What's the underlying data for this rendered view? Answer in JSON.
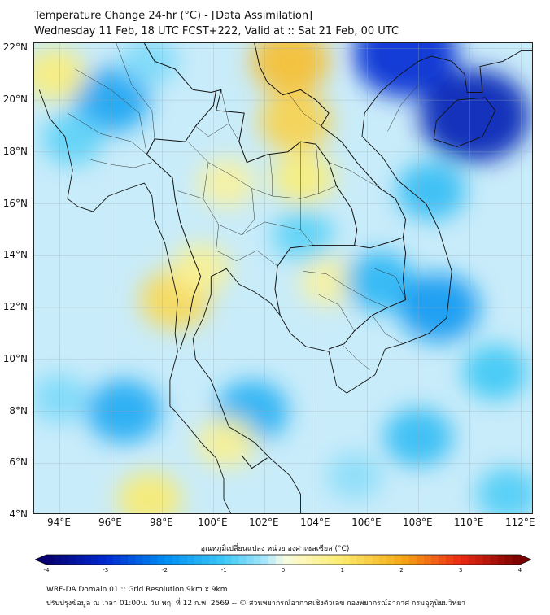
{
  "header": {
    "line1": "Temperature Change 24-hr (°C) - [Data Assimilation]",
    "line2": "Wednesday 11 Feb, 18 UTC FCST+222, Valid at :: Sat 21 Feb, 00 UTC"
  },
  "map": {
    "lat_ticks": [
      "22°N",
      "20°N",
      "18°N",
      "16°N",
      "14°N",
      "12°N",
      "10°N",
      "8°N",
      "6°N",
      "4°N"
    ],
    "lon_ticks": [
      "94°E",
      "96°E",
      "98°E",
      "100°E",
      "102°E",
      "104°E",
      "106°E",
      "108°E",
      "110°E",
      "112°E"
    ],
    "extent": {
      "lon_min": 93.0,
      "lon_max": 112.5,
      "lat_min": 4.0,
      "lat_max": 22.2
    },
    "base_color": "#c9ecfa",
    "field_spots": [
      {
        "lon": 96.0,
        "lat": 20.0,
        "value": -1.6
      },
      {
        "lon": 94.5,
        "lat": 18.5,
        "value": -0.8
      },
      {
        "lon": 93.8,
        "lat": 21.0,
        "value": 0.9
      },
      {
        "lon": 97.5,
        "lat": 21.5,
        "value": -0.6
      },
      {
        "lon": 103.0,
        "lat": 21.5,
        "value": 1.7
      },
      {
        "lon": 103.2,
        "lat": 19.2,
        "value": 1.4
      },
      {
        "lon": 103.5,
        "lat": 17.0,
        "value": 0.9
      },
      {
        "lon": 100.5,
        "lat": 16.8,
        "value": 0.6
      },
      {
        "lon": 98.5,
        "lat": 12.3,
        "value": 1.3
      },
      {
        "lon": 99.5,
        "lat": 13.5,
        "value": 0.7
      },
      {
        "lon": 104.5,
        "lat": 13.0,
        "value": 0.6
      },
      {
        "lon": 103.5,
        "lat": 14.8,
        "value": -0.8
      },
      {
        "lon": 107.5,
        "lat": 21.8,
        "value": -3.0
      },
      {
        "lon": 110.2,
        "lat": 19.4,
        "value": -3.3
      },
      {
        "lon": 108.5,
        "lat": 16.5,
        "value": -1.2
      },
      {
        "lon": 106.5,
        "lat": 13.0,
        "value": -1.3
      },
      {
        "lon": 108.8,
        "lat": 12.0,
        "value": -1.8
      },
      {
        "lon": 96.5,
        "lat": 8.0,
        "value": -1.5
      },
      {
        "lon": 94.0,
        "lat": 8.5,
        "value": -0.6
      },
      {
        "lon": 101.5,
        "lat": 8.0,
        "value": -1.4
      },
      {
        "lon": 108.0,
        "lat": 7.0,
        "value": -1.2
      },
      {
        "lon": 111.0,
        "lat": 9.5,
        "value": -1.0
      },
      {
        "lon": 100.5,
        "lat": 6.8,
        "value": 0.7
      },
      {
        "lon": 97.5,
        "lat": 4.6,
        "value": 1.0
      },
      {
        "lon": 111.5,
        "lat": 4.8,
        "value": -0.9
      },
      {
        "lon": 105.5,
        "lat": 5.5,
        "value": -0.5
      }
    ],
    "coastline": [
      [
        [
          93.2,
          20.4
        ],
        [
          93.6,
          19.3
        ],
        [
          94.2,
          18.6
        ],
        [
          94.5,
          17.3
        ],
        [
          94.3,
          16.2
        ],
        [
          94.7,
          15.9
        ],
        [
          95.3,
          15.7
        ],
        [
          95.9,
          16.3
        ],
        [
          96.7,
          16.6
        ],
        [
          97.3,
          16.8
        ],
        [
          97.6,
          16.3
        ],
        [
          97.7,
          15.4
        ],
        [
          98.1,
          14.5
        ],
        [
          98.4,
          13.2
        ],
        [
          98.6,
          12.3
        ],
        [
          98.5,
          11.0
        ],
        [
          98.6,
          10.3
        ],
        [
          98.3,
          9.2
        ],
        [
          98.3,
          8.2
        ],
        [
          98.5,
          8.0
        ],
        [
          99.1,
          7.3
        ],
        [
          99.6,
          6.7
        ],
        [
          100.1,
          6.2
        ],
        [
          100.4,
          5.4
        ],
        [
          100.4,
          4.6
        ],
        [
          100.7,
          4.0
        ]
      ],
      [
        [
          103.4,
          4.0
        ],
        [
          103.4,
          4.8
        ],
        [
          103.0,
          5.5
        ],
        [
          102.2,
          6.2
        ],
        [
          101.6,
          6.8
        ],
        [
          100.6,
          7.4
        ],
        [
          100.3,
          8.2
        ],
        [
          99.9,
          9.2
        ],
        [
          99.3,
          10.0
        ],
        [
          99.2,
          10.8
        ],
        [
          99.6,
          11.6
        ],
        [
          99.9,
          12.5
        ],
        [
          99.9,
          13.2
        ],
        [
          100.5,
          13.5
        ],
        [
          101.0,
          12.9
        ],
        [
          101.6,
          12.6
        ],
        [
          102.2,
          12.2
        ],
        [
          102.6,
          11.7
        ],
        [
          103.0,
          11.0
        ],
        [
          103.6,
          10.5
        ],
        [
          104.5,
          10.3
        ],
        [
          104.8,
          9.0
        ],
        [
          105.2,
          8.7
        ],
        [
          106.3,
          9.4
        ],
        [
          106.7,
          10.4
        ],
        [
          107.4,
          10.6
        ],
        [
          108.4,
          11.0
        ],
        [
          109.1,
          11.6
        ],
        [
          109.2,
          12.5
        ],
        [
          109.3,
          13.4
        ],
        [
          108.8,
          15.0
        ],
        [
          108.3,
          16.0
        ],
        [
          107.2,
          16.9
        ],
        [
          106.6,
          17.8
        ],
        [
          105.8,
          18.6
        ],
        [
          105.9,
          19.5
        ],
        [
          106.5,
          20.3
        ],
        [
          107.3,
          21.0
        ],
        [
          108.0,
          21.5
        ],
        [
          108.5,
          21.7
        ],
        [
          109.3,
          21.5
        ],
        [
          109.8,
          21.0
        ],
        [
          109.9,
          20.3
        ],
        [
          110.5,
          20.3
        ],
        [
          110.4,
          21.3
        ],
        [
          111.3,
          21.5
        ],
        [
          112.0,
          21.9
        ],
        [
          112.5,
          21.9
        ]
      ],
      [
        [
          108.7,
          19.2
        ],
        [
          108.6,
          18.5
        ],
        [
          109.5,
          18.2
        ],
        [
          110.5,
          18.6
        ],
        [
          111.0,
          19.6
        ],
        [
          110.6,
          20.1
        ],
        [
          109.5,
          20.0
        ],
        [
          108.7,
          19.2
        ]
      ]
    ],
    "borders": [
      [
        [
          97.3,
          22.2
        ],
        [
          97.7,
          21.5
        ],
        [
          98.5,
          21.2
        ],
        [
          99.2,
          20.4
        ],
        [
          99.9,
          20.3
        ],
        [
          100.3,
          20.4
        ],
        [
          100.1,
          19.6
        ],
        [
          101.2,
          19.5
        ],
        [
          101.0,
          18.4
        ],
        [
          101.3,
          17.6
        ],
        [
          102.1,
          17.9
        ],
        [
          102.9,
          18.0
        ],
        [
          103.4,
          18.4
        ],
        [
          104.0,
          18.3
        ],
        [
          104.5,
          17.6
        ],
        [
          104.8,
          16.7
        ],
        [
          105.4,
          15.8
        ],
        [
          105.6,
          15.0
        ],
        [
          105.5,
          14.4
        ],
        [
          104.8,
          14.4
        ],
        [
          103.9,
          14.4
        ],
        [
          103.0,
          14.3
        ],
        [
          102.5,
          13.6
        ],
        [
          102.4,
          12.7
        ],
        [
          102.6,
          11.7
        ]
      ],
      [
        [
          100.1,
          20.4
        ],
        [
          100.0,
          19.8
        ],
        [
          99.3,
          19.0
        ],
        [
          98.9,
          18.4
        ],
        [
          97.7,
          18.5
        ],
        [
          97.4,
          17.9
        ],
        [
          98.4,
          17.0
        ],
        [
          98.5,
          16.2
        ],
        [
          98.7,
          15.3
        ],
        [
          99.1,
          14.2
        ],
        [
          99.5,
          13.2
        ],
        [
          99.2,
          12.4
        ],
        [
          99.0,
          11.3
        ],
        [
          98.7,
          10.4
        ]
      ],
      [
        [
          101.6,
          22.2
        ],
        [
          101.8,
          21.3
        ],
        [
          102.1,
          20.7
        ],
        [
          102.7,
          20.2
        ],
        [
          103.4,
          20.4
        ],
        [
          104.0,
          20.0
        ],
        [
          104.5,
          19.5
        ],
        [
          104.2,
          19.0
        ],
        [
          105.0,
          18.4
        ],
        [
          105.6,
          17.6
        ],
        [
          106.5,
          16.6
        ],
        [
          107.1,
          16.2
        ],
        [
          107.5,
          15.4
        ],
        [
          107.4,
          14.7
        ]
      ],
      [
        [
          107.4,
          14.7
        ],
        [
          107.5,
          14.1
        ],
        [
          107.4,
          13.1
        ],
        [
          107.5,
          12.3
        ],
        [
          106.8,
          12.0
        ],
        [
          106.2,
          11.7
        ],
        [
          105.5,
          11.1
        ],
        [
          105.1,
          10.6
        ],
        [
          104.5,
          10.4
        ]
      ],
      [
        [
          105.5,
          14.4
        ],
        [
          106.1,
          14.3
        ],
        [
          106.8,
          14.5
        ],
        [
          107.4,
          14.7
        ]
      ],
      [
        [
          101.1,
          6.3
        ],
        [
          101.5,
          5.8
        ],
        [
          102.1,
          6.2
        ]
      ]
    ],
    "internal_lines": [
      [
        [
          99.0,
          18.4
        ],
        [
          99.8,
          17.6
        ],
        [
          100.7,
          17.1
        ],
        [
          101.5,
          16.6
        ],
        [
          102.3,
          16.3
        ],
        [
          103.4,
          16.2
        ]
      ],
      [
        [
          99.8,
          17.6
        ],
        [
          99.6,
          16.2
        ],
        [
          100.2,
          15.2
        ],
        [
          101.1,
          14.8
        ],
        [
          102.0,
          15.3
        ],
        [
          103.4,
          15.0
        ]
      ],
      [
        [
          100.2,
          15.2
        ],
        [
          100.1,
          14.2
        ],
        [
          100.9,
          13.8
        ],
        [
          101.7,
          14.2
        ],
        [
          102.5,
          13.6
        ]
      ],
      [
        [
          101.5,
          16.6
        ],
        [
          101.6,
          15.4
        ],
        [
          101.1,
          14.8
        ]
      ],
      [
        [
          103.4,
          16.2
        ],
        [
          104.1,
          16.4
        ],
        [
          104.8,
          16.7
        ]
      ],
      [
        [
          103.4,
          18.4
        ],
        [
          103.4,
          17.2
        ],
        [
          103.4,
          16.2
        ],
        [
          103.4,
          15.0
        ],
        [
          103.9,
          14.4
        ]
      ],
      [
        [
          102.2,
          17.9
        ],
        [
          102.3,
          16.9
        ],
        [
          102.3,
          16.3
        ]
      ],
      [
        [
          104.0,
          18.3
        ],
        [
          104.1,
          17.2
        ],
        [
          104.1,
          16.4
        ]
      ],
      [
        [
          100.3,
          20.4
        ],
        [
          100.6,
          19.1
        ],
        [
          101.0,
          18.4
        ]
      ],
      [
        [
          99.3,
          19.0
        ],
        [
          99.8,
          18.6
        ],
        [
          100.6,
          19.1
        ]
      ],
      [
        [
          98.6,
          16.5
        ],
        [
          99.6,
          16.2
        ]
      ],
      [
        [
          102.9,
          20.3
        ],
        [
          103.5,
          19.5
        ],
        [
          104.2,
          19.0
        ]
      ],
      [
        [
          104.5,
          17.6
        ],
        [
          105.3,
          17.3
        ],
        [
          106.5,
          16.6
        ]
      ],
      [
        [
          96.2,
          22.2
        ],
        [
          96.8,
          20.6
        ],
        [
          97.6,
          19.6
        ],
        [
          97.7,
          18.5
        ]
      ],
      [
        [
          94.6,
          21.2
        ],
        [
          96.0,
          20.4
        ],
        [
          97.1,
          19.5
        ],
        [
          97.4,
          17.9
        ]
      ],
      [
        [
          94.3,
          19.5
        ],
        [
          95.6,
          18.7
        ],
        [
          96.8,
          18.4
        ],
        [
          97.4,
          17.9
        ]
      ],
      [
        [
          95.2,
          17.7
        ],
        [
          96.1,
          17.5
        ],
        [
          96.9,
          17.4
        ],
        [
          97.6,
          17.6
        ]
      ],
      [
        [
          105.2,
          12.8
        ],
        [
          106.1,
          12.3
        ],
        [
          106.8,
          12.0
        ]
      ],
      [
        [
          104.1,
          12.5
        ],
        [
          104.9,
          12.1
        ],
        [
          105.5,
          11.1
        ]
      ],
      [
        [
          103.5,
          13.4
        ],
        [
          104.4,
          13.3
        ],
        [
          105.2,
          12.8
        ]
      ],
      [
        [
          105.0,
          10.6
        ],
        [
          105.6,
          10.0
        ],
        [
          106.1,
          9.6
        ]
      ],
      [
        [
          106.2,
          11.7
        ],
        [
          106.7,
          11.0
        ],
        [
          107.4,
          10.6
        ]
      ],
      [
        [
          106.3,
          13.5
        ],
        [
          107.1,
          13.2
        ],
        [
          107.5,
          12.3
        ]
      ],
      [
        [
          106.8,
          18.8
        ],
        [
          107.3,
          19.8
        ],
        [
          108.0,
          20.6
        ]
      ]
    ]
  },
  "colorbar": {
    "title": "อุณหภูมิเปลี่ยนแปลง หน่วย องศาเซลเซียส (°C)",
    "ticks": [
      "-4",
      "-3",
      "-2",
      "-1",
      "0",
      "1",
      "2",
      "3",
      "4"
    ],
    "min": -4,
    "max": 4
  },
  "footer": {
    "line1": "WRF-DA Domain 01 :: Grid Resolution 9km x 9km",
    "line2": "ปรับปรุงข้อมูล ณ เวลา 01:00น. วัน พฤ. ที่ 12 ก.พ. 2569 -- © ส่วนพยากรณ์อากาศเชิงตัวเลข กองพยากรณ์อากาศ กรมอุตุนิยมวิทยา"
  }
}
